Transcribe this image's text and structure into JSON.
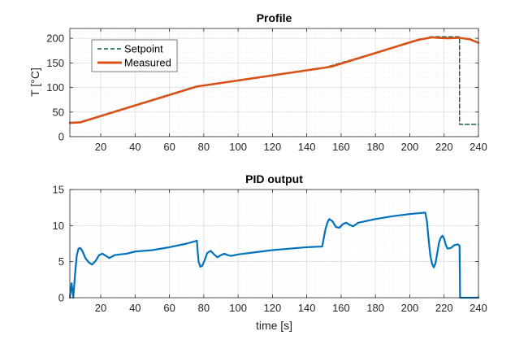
{
  "chart_data": [
    {
      "type": "line",
      "title": "Profile",
      "xlabel": "",
      "ylabel": "T [°C]",
      "xlim": [
        2,
        240
      ],
      "ylim": [
        0,
        220
      ],
      "xticks": [
        20,
        40,
        60,
        80,
        100,
        120,
        140,
        160,
        180,
        200,
        220,
        240
      ],
      "yticks": [
        0,
        50,
        100,
        150,
        200
      ],
      "grid": "on (major and minor)",
      "legend": "top-left",
      "series": [
        {
          "name": "Setpoint",
          "color": "#1f5e44",
          "style": "dashed",
          "x": [
            2,
            8,
            76,
            80,
            150,
            152,
            212,
            229,
            229,
            240
          ],
          "y": [
            28,
            30,
            103,
            104,
            140,
            142,
            203,
            203,
            25,
            25
          ]
        },
        {
          "name": "Measured",
          "color": "#d95319",
          "style": "solid",
          "x": [
            2,
            8,
            76,
            80,
            150,
            155,
            205,
            210,
            213,
            216,
            222,
            229,
            235,
            240
          ],
          "y": [
            28,
            29,
            102,
            104,
            140,
            143,
            197,
            200,
            202,
            201,
            200,
            201,
            198,
            191
          ]
        }
      ]
    },
    {
      "type": "line",
      "title": "PID output",
      "xlabel": "time [s]",
      "ylabel": "",
      "xlim": [
        2,
        240
      ],
      "ylim": [
        0,
        15
      ],
      "xticks": [
        20,
        40,
        60,
        80,
        100,
        120,
        140,
        160,
        180,
        200,
        220,
        240
      ],
      "yticks": [
        0,
        5,
        10,
        15
      ],
      "grid": "on (major and minor)",
      "legend": "none",
      "series": [
        {
          "name": "PID output",
          "color": "#0072bd",
          "style": "solid",
          "x": [
            2,
            3,
            4,
            5,
            6,
            7,
            8,
            9,
            10,
            11,
            13,
            15,
            17,
            19,
            21,
            23,
            25,
            28,
            31,
            35,
            40,
            50,
            60,
            70,
            76,
            76.5,
            77,
            78,
            79,
            80,
            81,
            82,
            84,
            86,
            88,
            90,
            92,
            94,
            96,
            100,
            110,
            120,
            130,
            140,
            149,
            150,
            151,
            152,
            153,
            155,
            157,
            159,
            161,
            163,
            165,
            167,
            170,
            180,
            190,
            200,
            209,
            210,
            211,
            212,
            213,
            214,
            215,
            216,
            217,
            218,
            219,
            220,
            221,
            222,
            224,
            226,
            228,
            229,
            229.3,
            240
          ],
          "y": [
            0,
            2,
            0,
            3.2,
            5.8,
            6.8,
            6.9,
            6.6,
            6.1,
            5.5,
            4.9,
            4.6,
            5.1,
            5.9,
            6.1,
            5.8,
            5.5,
            5.9,
            6.0,
            6.1,
            6.4,
            6.6,
            7.0,
            7.5,
            7.9,
            6.3,
            5.0,
            4.3,
            4.4,
            4.9,
            5.5,
            6.2,
            6.5,
            6.0,
            5.6,
            5.9,
            6.1,
            5.9,
            5.8,
            6.0,
            6.3,
            6.6,
            6.8,
            7.0,
            7.1,
            8.4,
            9.6,
            10.4,
            10.9,
            10.6,
            9.8,
            9.7,
            10.2,
            10.4,
            10.1,
            9.9,
            10.4,
            10.9,
            11.3,
            11.6,
            11.8,
            10.6,
            8.0,
            5.8,
            4.7,
            4.2,
            4.8,
            6.2,
            7.6,
            8.3,
            8.6,
            8.2,
            7.3,
            6.8,
            6.9,
            7.3,
            7.4,
            7.2,
            0,
            0
          ]
        }
      ]
    }
  ]
}
